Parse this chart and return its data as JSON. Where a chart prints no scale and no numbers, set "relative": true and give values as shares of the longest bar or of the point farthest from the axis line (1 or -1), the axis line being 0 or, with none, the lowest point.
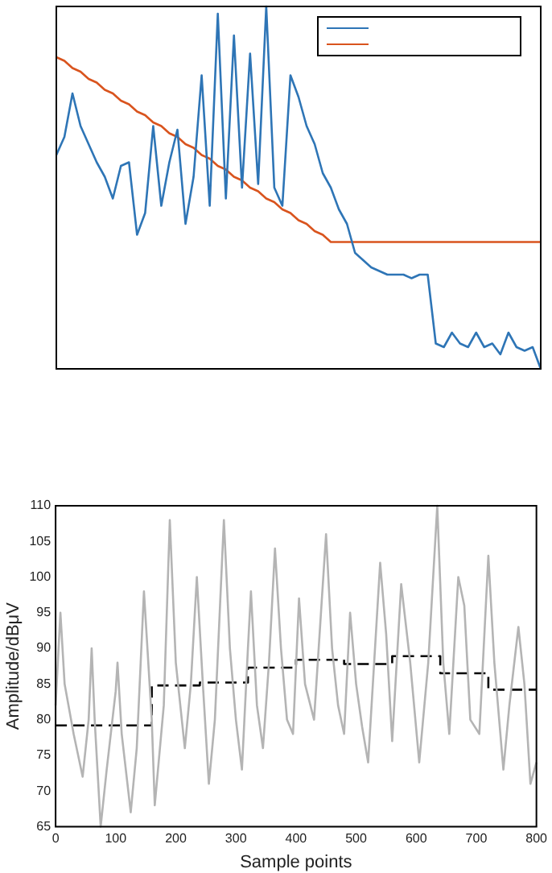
{
  "chart_data": [
    {
      "type": "line",
      "relative": true,
      "tick_labels": false,
      "grid": false,
      "categories": [
        null,
        null,
        null,
        null,
        null,
        null,
        null,
        null,
        null,
        null,
        null,
        null,
        null,
        null,
        null,
        null,
        null,
        null,
        null,
        null,
        null,
        null,
        null,
        null,
        null,
        null,
        null,
        null,
        null,
        null,
        null,
        null,
        null,
        null,
        null,
        null,
        null,
        null,
        null,
        null,
        null,
        null,
        null,
        null,
        null,
        null,
        null,
        null,
        null,
        null,
        null,
        null,
        null,
        null,
        null,
        null,
        null,
        null,
        null,
        null,
        null
      ],
      "series": [
        {
          "color": "#2e75b6",
          "values": [
            0.59,
            0.64,
            0.76,
            0.67,
            0.62,
            0.57,
            0.53,
            0.47,
            0.56,
            0.57,
            0.37,
            0.43,
            0.67,
            0.45,
            0.57,
            0.66,
            0.4,
            0.53,
            0.81,
            0.45,
            0.98,
            0.47,
            0.92,
            0.5,
            0.87,
            0.51,
            1,
            0.5,
            0.45,
            0.81,
            0.75,
            0.67,
            0.62,
            0.54,
            0.5,
            0.44,
            0.4,
            0.32,
            0.3,
            0.28,
            0.27,
            0.26,
            0.26,
            0.26,
            0.25,
            0.26,
            0.26,
            0.07,
            0.06,
            0.1,
            0.07,
            0.06,
            0.1,
            0.06,
            0.07,
            0.04,
            0.1,
            0.06,
            0.05,
            0.06,
            0
          ]
        },
        {
          "color": "#d9541e",
          "values": [
            0.86,
            0.85,
            0.83,
            0.82,
            0.8,
            0.79,
            0.77,
            0.76,
            0.74,
            0.73,
            0.71,
            0.7,
            0.68,
            0.67,
            0.65,
            0.64,
            0.62,
            0.61,
            0.59,
            0.58,
            0.56,
            0.55,
            0.53,
            0.52,
            0.5,
            0.49,
            0.47,
            0.46,
            0.44,
            0.43,
            0.41,
            0.4,
            0.38,
            0.37,
            0.35,
            0.35,
            0.35,
            0.35,
            0.35,
            0.35,
            0.35,
            0.35,
            0.35,
            0.35,
            0.35,
            0.35,
            0.35,
            0.35,
            0.35,
            0.35,
            0.35,
            0.35,
            0.35,
            0.35,
            0.35,
            0.35,
            0.35,
            0.35,
            0.35,
            0.35,
            0.35
          ]
        }
      ]
    },
    {
      "type": "line",
      "xlabel": "Sample points",
      "ylabel": "Amplitude/dBμV",
      "grid": false,
      "xlim": [
        0,
        800
      ],
      "xticks": [
        0,
        100,
        200,
        300,
        400,
        500,
        600,
        700,
        800
      ],
      "ylim": [
        65,
        110
      ],
      "yticks": [
        65,
        70,
        75,
        80,
        85,
        90,
        95,
        100,
        105,
        110
      ],
      "series": [
        {
          "color": "#b4b4b4",
          "x": [
            0,
            8,
            15,
            30,
            45,
            55,
            60,
            65,
            75,
            85,
            100,
            103,
            110,
            125,
            135,
            147,
            160,
            165,
            180,
            190,
            200,
            215,
            225,
            235,
            245,
            255,
            265,
            280,
            290,
            300,
            310,
            320,
            325,
            335,
            345,
            355,
            365,
            375,
            385,
            395,
            405,
            415,
            430,
            450,
            460,
            470,
            480,
            490,
            500,
            510,
            520,
            540,
            550,
            560,
            575,
            590,
            605,
            620,
            635,
            645,
            655,
            670,
            680,
            690,
            705,
            720,
            730,
            745,
            755,
            770,
            780,
            790,
            800
          ],
          "values": [
            82,
            95,
            85,
            78,
            72,
            80,
            90,
            80,
            65,
            73,
            84,
            88,
            78,
            67,
            76,
            98,
            80,
            68,
            82,
            108,
            88,
            76,
            85,
            100,
            85,
            71,
            80,
            108,
            90,
            80,
            73,
            90,
            98,
            82,
            76,
            88,
            104,
            90,
            80,
            78,
            97,
            85,
            80,
            106,
            90,
            82,
            78,
            95,
            85,
            79,
            74,
            102,
            92,
            77,
            99,
            88,
            74,
            88,
            110,
            88,
            78,
            100,
            96,
            80,
            78,
            103,
            88,
            73,
            82,
            93,
            85,
            71,
            74
          ]
        },
        {
          "type": "step",
          "color": "#000000",
          "line_style": "dashed",
          "x": [
            0,
            160,
            240,
            320,
            400,
            480,
            560,
            640,
            720,
            800
          ],
          "values": [
            79.2,
            84.8,
            85.2,
            87.3,
            88.4,
            87.8,
            88.9,
            86.5,
            84.2,
            84.2
          ]
        }
      ]
    }
  ]
}
